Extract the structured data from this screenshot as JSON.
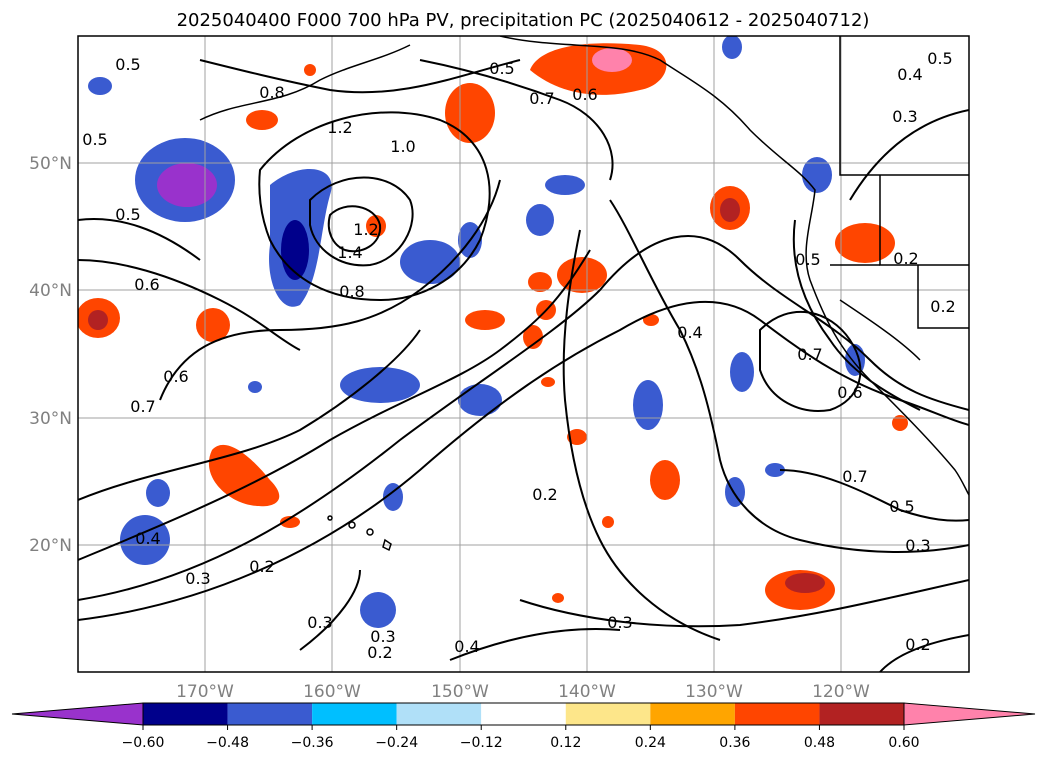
{
  "title": "2025040400 F000 700 hPa PV, precipitation PC (2025040612 - 2025040712)",
  "map": {
    "lon_ticks": [
      "170°W",
      "160°W",
      "150°W",
      "140°W",
      "130°W",
      "120°W"
    ],
    "lat_ticks": [
      "50°N",
      "40°N",
      "30°N",
      "20°N"
    ],
    "extent": {
      "lon_min": -180,
      "lon_max": -110,
      "lat_min": 10,
      "lat_max": 60
    },
    "grid": true,
    "contour_labels": [
      "0.5",
      "0.8",
      "0.5",
      "0.7",
      "0.6",
      "0.4",
      "0.5",
      "0.3",
      "0.5",
      "1.2",
      "1.0",
      "0.5",
      "1.2",
      "1.4",
      "0.8",
      "0.6",
      "0.6",
      "0.7",
      "0.4",
      "0.5",
      "0.2",
      "0.2",
      "0.7",
      "0.6",
      "0.7",
      "0.5",
      "0.3",
      "0.2",
      "0.4",
      "0.3",
      "0.2",
      "0.3",
      "0.2",
      "0.4",
      "0.3",
      "0.3",
      "0.2"
    ]
  },
  "colorbar": {
    "ticks": [
      "−0.60",
      "−0.48",
      "−0.36",
      "−0.24",
      "−0.12",
      "0.12",
      "0.24",
      "0.36",
      "0.48",
      "0.60"
    ],
    "colors": [
      "#9932cc",
      "#00008b",
      "#3a5bd0",
      "#00bfff",
      "#b0e0f8",
      "#ffffff",
      "#fde68a",
      "#ffa500",
      "#ff4500",
      "#b22222",
      "#ff82ab"
    ],
    "extend": "both"
  }
}
